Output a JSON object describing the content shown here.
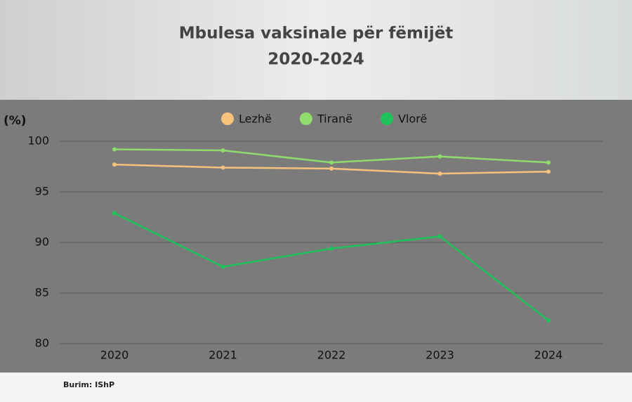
{
  "chart_data": {
    "type": "line",
    "title": "Mbulesa vaksinale për fëmijët",
    "subtitle": "2020-2024",
    "y_label": "(%)",
    "source": "Burim: IShP",
    "categories": [
      "2020",
      "2021",
      "2022",
      "2023",
      "2024"
    ],
    "series": [
      {
        "name": "Lezhë",
        "color": "#f7c27c",
        "values": [
          97.7,
          97.4,
          97.3,
          96.8,
          97.0
        ]
      },
      {
        "name": "Tiranë",
        "color": "#8fdc6c",
        "values": [
          99.2,
          99.1,
          97.9,
          98.5,
          97.9
        ]
      },
      {
        "name": "Vlorë",
        "color": "#1fc25a",
        "values": [
          92.9,
          87.6,
          89.4,
          90.6,
          82.3
        ]
      }
    ],
    "ylim": [
      80,
      100
    ],
    "yticks": [
      80,
      85,
      90,
      95,
      100
    ],
    "grid": true
  }
}
